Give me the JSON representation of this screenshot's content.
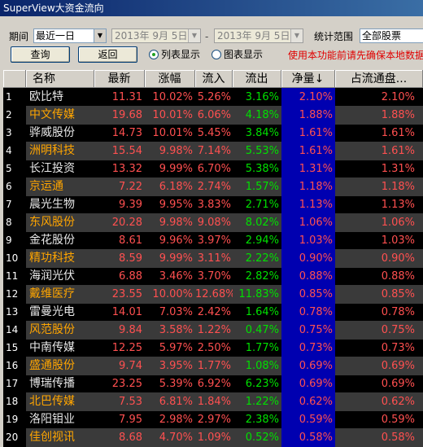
{
  "window": {
    "title": "SuperView大资金流向"
  },
  "toolbar": {
    "period_label": "期间",
    "period_value": "最近一日",
    "date_start": "2013年  9月  5日",
    "date_sep": "-",
    "date_end": "2013年  9月  5日",
    "scope_label": "统计范围",
    "scope_value": "全部股票",
    "query_button": "查询",
    "back_button": "返回",
    "list_view": "列表显示",
    "chart_view": "图表显示",
    "notice": "使用本功能前请先确保本地数据"
  },
  "table": {
    "columns": [
      "名称",
      "最新",
      "涨幅",
      "流入",
      "流出",
      "净量↓",
      "占流通盘..."
    ],
    "rows": [
      {
        "idx": "1",
        "name": "欧比特",
        "price": "11.31",
        "chg": "10.02%",
        "in": "5.26%",
        "out": "3.16%",
        "net": "2.10%",
        "ratio": "2.10%"
      },
      {
        "idx": "2",
        "name": "中文传媒",
        "price": "19.68",
        "chg": "10.01%",
        "in": "6.06%",
        "out": "4.18%",
        "net": "1.88%",
        "ratio": "1.88%"
      },
      {
        "idx": "3",
        "name": "骅威股份",
        "price": "14.73",
        "chg": "10.01%",
        "in": "5.45%",
        "out": "3.84%",
        "net": "1.61%",
        "ratio": "1.61%"
      },
      {
        "idx": "4",
        "name": "洲明科技",
        "price": "15.54",
        "chg": "9.98%",
        "in": "7.14%",
        "out": "5.53%",
        "net": "1.61%",
        "ratio": "1.61%"
      },
      {
        "idx": "5",
        "name": "长江投资",
        "price": "13.32",
        "chg": "9.99%",
        "in": "6.70%",
        "out": "5.38%",
        "net": "1.31%",
        "ratio": "1.31%"
      },
      {
        "idx": "6",
        "name": "京运通",
        "price": "7.22",
        "chg": "6.18%",
        "in": "2.74%",
        "out": "1.57%",
        "net": "1.18%",
        "ratio": "1.18%"
      },
      {
        "idx": "7",
        "name": "晨光生物",
        "price": "9.39",
        "chg": "9.95%",
        "in": "3.83%",
        "out": "2.71%",
        "net": "1.13%",
        "ratio": "1.13%"
      },
      {
        "idx": "8",
        "name": "东风股份",
        "price": "20.28",
        "chg": "9.98%",
        "in": "9.08%",
        "out": "8.02%",
        "net": "1.06%",
        "ratio": "1.06%"
      },
      {
        "idx": "9",
        "name": "金花股份",
        "price": "8.61",
        "chg": "9.96%",
        "in": "3.97%",
        "out": "2.94%",
        "net": "1.03%",
        "ratio": "1.03%"
      },
      {
        "idx": "10",
        "name": "精功科技",
        "price": "8.59",
        "chg": "9.99%",
        "in": "3.11%",
        "out": "2.22%",
        "net": "0.90%",
        "ratio": "0.90%"
      },
      {
        "idx": "11",
        "name": "海润光伏",
        "price": "6.88",
        "chg": "3.46%",
        "in": "3.70%",
        "out": "2.82%",
        "net": "0.88%",
        "ratio": "0.88%"
      },
      {
        "idx": "12",
        "name": "戴维医疗",
        "price": "23.55",
        "chg": "10.00%",
        "in": "12.68%",
        "out": "11.83%",
        "net": "0.85%",
        "ratio": "0.85%"
      },
      {
        "idx": "13",
        "name": "雷曼光电",
        "price": "14.01",
        "chg": "7.03%",
        "in": "2.42%",
        "out": "1.64%",
        "net": "0.78%",
        "ratio": "0.78%"
      },
      {
        "idx": "14",
        "name": "风范股份",
        "price": "9.84",
        "chg": "3.58%",
        "in": "1.22%",
        "out": "0.47%",
        "net": "0.75%",
        "ratio": "0.75%"
      },
      {
        "idx": "15",
        "name": "中南传媒",
        "price": "12.25",
        "chg": "5.97%",
        "in": "2.50%",
        "out": "1.77%",
        "net": "0.73%",
        "ratio": "0.73%"
      },
      {
        "idx": "16",
        "name": "盛通股份",
        "price": "9.74",
        "chg": "3.95%",
        "in": "1.77%",
        "out": "1.08%",
        "net": "0.69%",
        "ratio": "0.69%"
      },
      {
        "idx": "17",
        "name": "博瑞传播",
        "price": "23.25",
        "chg": "5.39%",
        "in": "6.92%",
        "out": "6.23%",
        "net": "0.69%",
        "ratio": "0.69%"
      },
      {
        "idx": "18",
        "name": "北巴传媒",
        "price": "7.53",
        "chg": "6.81%",
        "in": "1.84%",
        "out": "1.22%",
        "net": "0.62%",
        "ratio": "0.62%"
      },
      {
        "idx": "19",
        "name": "洛阳钼业",
        "price": "7.95",
        "chg": "2.98%",
        "in": "2.97%",
        "out": "2.38%",
        "net": "0.59%",
        "ratio": "0.59%"
      },
      {
        "idx": "20",
        "name": "佳创视讯",
        "price": "8.68",
        "chg": "4.70%",
        "in": "1.09%",
        "out": "0.52%",
        "net": "0.58%",
        "ratio": "0.58%"
      }
    ]
  },
  "colors": {
    "up": "#ff5050",
    "down": "#00e000",
    "net_bg": "#0000b0",
    "name_alt": "#ffa500"
  }
}
